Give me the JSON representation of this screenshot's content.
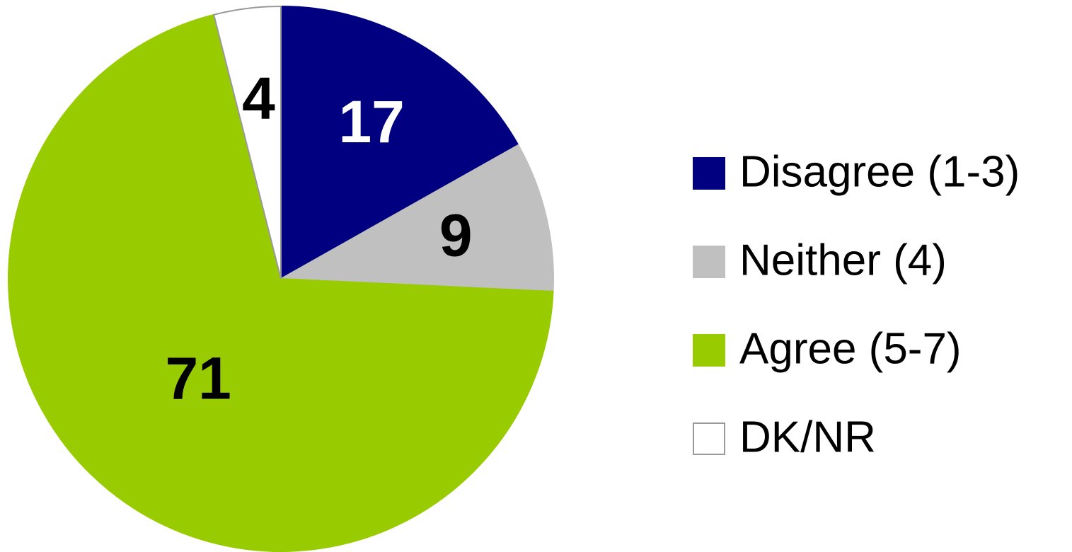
{
  "chart_data": {
    "type": "pie",
    "categories": [
      "Disagree (1-3)",
      "Neither (4)",
      "Agree (5-7)",
      "DK/NR"
    ],
    "values": [
      17,
      9,
      71,
      4
    ],
    "colors": [
      "#000080",
      "#c0c0c0",
      "#99cc00",
      "#ffffff"
    ],
    "label_colors": [
      "#ffffff",
      "#000000",
      "#000000",
      "#000000"
    ],
    "legend": "right"
  }
}
